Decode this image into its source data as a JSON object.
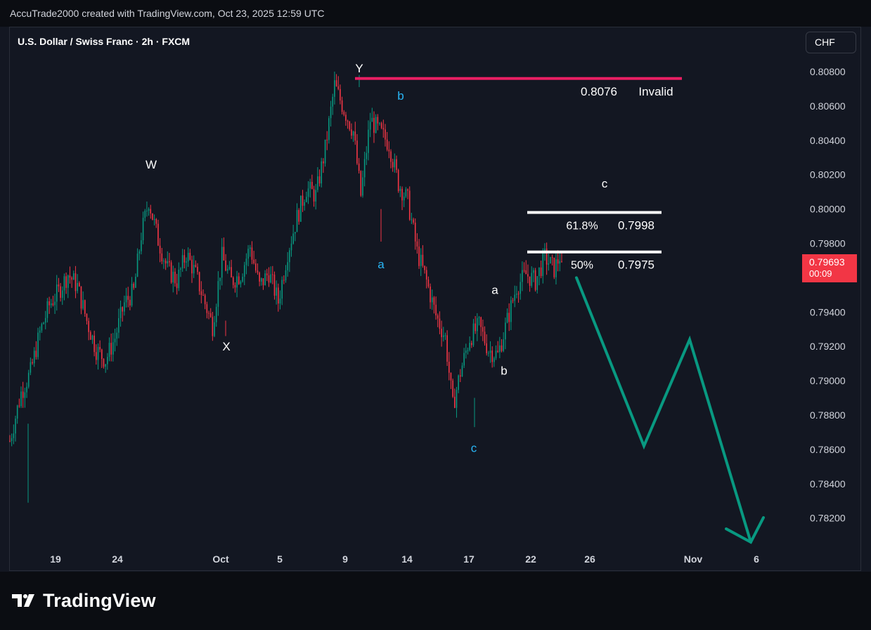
{
  "header": {
    "credit": "AccuTrade2000 created with TradingView.com, Oct 23, 2025 12:59 UTC"
  },
  "chart_header": {
    "symbol": "U.S. Dollar / Swiss Franc · 2h · FXCM",
    "currency_button": "CHF"
  },
  "last_price": {
    "price": "0.79693",
    "countdown": "00:09",
    "color": "#f23645"
  },
  "logo": {
    "text": "TradingView"
  },
  "colors": {
    "up": "#089981",
    "down": "#f23645",
    "invalid_line": "#e91e63",
    "projection": "#089981",
    "fib_lines": "#ffffff",
    "wave_primary": "#ffffff",
    "wave_minor": "#29b6f6"
  },
  "chart_data": {
    "type": "candlestick",
    "instrument": "U.S. Dollar / Swiss Franc",
    "timeframe": "2h",
    "source": "FXCM",
    "ylim": [
      0.781,
      0.8094
    ],
    "y_ticks": [
      "0.80800",
      "0.80600",
      "0.80400",
      "0.80200",
      "0.80000",
      "0.79800",
      "0.79400",
      "0.79200",
      "0.79000",
      "0.78800",
      "0.78600",
      "0.78400",
      "0.78200"
    ],
    "x_ticks": [
      "19",
      "24",
      "Oct",
      "5",
      "9",
      "14",
      "17",
      "22",
      "26",
      "Nov",
      "6"
    ],
    "price_path": [
      {
        "t": 0,
        "p": 0.7865
      },
      {
        "t": 6,
        "p": 0.7893
      },
      {
        "t": 11,
        "p": 0.7905
      },
      {
        "t": 16,
        "p": 0.7928
      },
      {
        "t": 21,
        "p": 0.7944
      },
      {
        "t": 26,
        "p": 0.7952
      },
      {
        "t": 31,
        "p": 0.7962
      },
      {
        "t": 36,
        "p": 0.7955
      },
      {
        "t": 41,
        "p": 0.7935
      },
      {
        "t": 46,
        "p": 0.7918
      },
      {
        "t": 51,
        "p": 0.7912
      },
      {
        "t": 56,
        "p": 0.7925
      },
      {
        "t": 61,
        "p": 0.7945
      },
      {
        "t": 66,
        "p": 0.7952
      },
      {
        "t": 70,
        "p": 0.7985
      },
      {
        "t": 74,
        "p": 0.8005
      },
      {
        "t": 79,
        "p": 0.7982
      },
      {
        "t": 84,
        "p": 0.7965
      },
      {
        "t": 89,
        "p": 0.7958
      },
      {
        "t": 94,
        "p": 0.7974
      },
      {
        "t": 99,
        "p": 0.7962
      },
      {
        "t": 104,
        "p": 0.7945
      },
      {
        "t": 108,
        "p": 0.7932
      },
      {
        "t": 113,
        "p": 0.7972
      },
      {
        "t": 118,
        "p": 0.7958
      },
      {
        "t": 123,
        "p": 0.7962
      },
      {
        "t": 128,
        "p": 0.7978
      },
      {
        "t": 133,
        "p": 0.7955
      },
      {
        "t": 138,
        "p": 0.7963
      },
      {
        "t": 143,
        "p": 0.7946
      },
      {
        "t": 148,
        "p": 0.7975
      },
      {
        "t": 153,
        "p": 0.7995
      },
      {
        "t": 158,
        "p": 0.8012
      },
      {
        "t": 163,
        "p": 0.8008
      },
      {
        "t": 168,
        "p": 0.8035
      },
      {
        "t": 173,
        "p": 0.8072
      },
      {
        "t": 178,
        "p": 0.8058
      },
      {
        "t": 183,
        "p": 0.8045
      },
      {
        "t": 187,
        "p": 0.8008
      },
      {
        "t": 192,
        "p": 0.8052
      },
      {
        "t": 197,
        "p": 0.8045
      },
      {
        "t": 202,
        "p": 0.8038
      },
      {
        "t": 207,
        "p": 0.8015
      },
      {
        "t": 212,
        "p": 0.8005
      },
      {
        "t": 217,
        "p": 0.7975
      },
      {
        "t": 222,
        "p": 0.7958
      },
      {
        "t": 227,
        "p": 0.7938
      },
      {
        "t": 232,
        "p": 0.7925
      },
      {
        "t": 236,
        "p": 0.7885
      },
      {
        "t": 240,
        "p": 0.7905
      },
      {
        "t": 245,
        "p": 0.7925
      },
      {
        "t": 250,
        "p": 0.7932
      },
      {
        "t": 255,
        "p": 0.7918
      },
      {
        "t": 260,
        "p": 0.7915
      },
      {
        "t": 265,
        "p": 0.7935
      },
      {
        "t": 270,
        "p": 0.7955
      },
      {
        "t": 275,
        "p": 0.7962
      },
      {
        "t": 280,
        "p": 0.7958
      },
      {
        "t": 285,
        "p": 0.7972
      },
      {
        "t": 290,
        "p": 0.7965
      },
      {
        "t": 294,
        "p": 0.7975
      }
    ],
    "candles_approx_count": 295,
    "last_close": 0.79693,
    "wave_labels": [
      {
        "text": "W",
        "price": 0.8026,
        "color": "white"
      },
      {
        "text": "X",
        "price": 0.792,
        "color": "white"
      },
      {
        "text": "Y",
        "price": 0.8082,
        "color": "white"
      },
      {
        "text": "a",
        "price": 0.7968,
        "color": "blue"
      },
      {
        "text": "b",
        "price": 0.8066,
        "color": "blue"
      },
      {
        "text": "c",
        "price": 0.7861,
        "color": "blue"
      },
      {
        "text": "a",
        "price": 0.7953,
        "color": "white"
      },
      {
        "text": "b",
        "price": 0.7906,
        "color": "white"
      },
      {
        "text": "c",
        "price": 0.8015,
        "color": "white"
      }
    ],
    "horizontal_levels": [
      {
        "price": 0.8076,
        "label_value": "0.8076",
        "label_text": "Invalid",
        "color": "#e91e63"
      },
      {
        "price": 0.7998,
        "label_value": "0.7998",
        "label_text": "61.8%",
        "color": "#ffffff"
      },
      {
        "price": 0.7975,
        "label_value": "0.7975",
        "label_text": "50%",
        "color": "#ffffff"
      }
    ],
    "projection_path": [
      0.796,
      0.7862,
      0.7924,
      0.7806
    ],
    "projection_arrow": true
  }
}
